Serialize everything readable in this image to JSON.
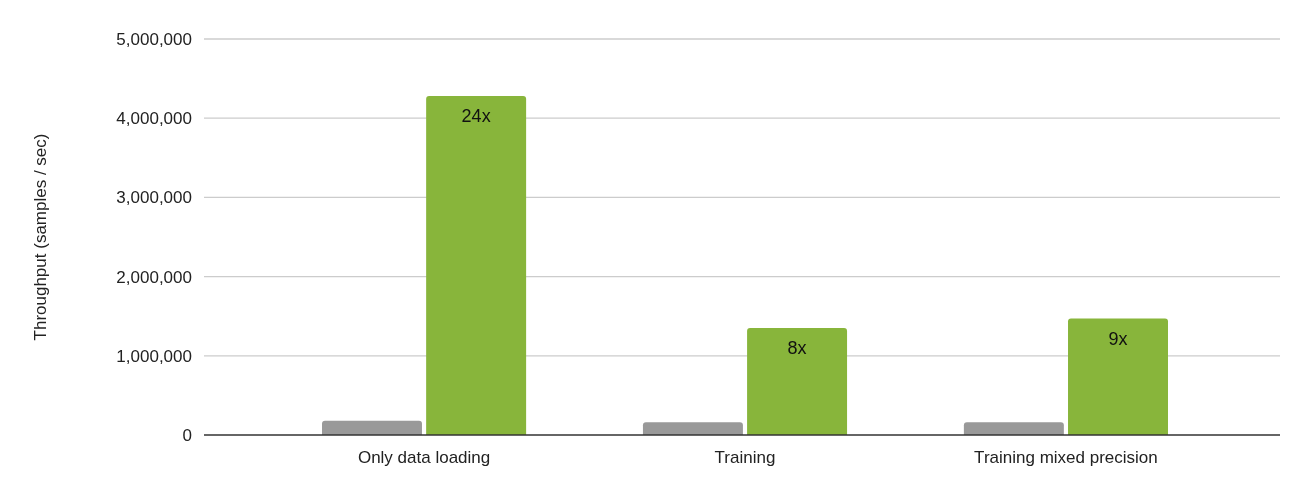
{
  "chart_data": {
    "type": "bar",
    "ylabel": "Throughput (samples / sec)",
    "categories": [
      "Only data loading",
      "Training",
      "Training mixed precision"
    ],
    "series": [
      {
        "color": "#999999",
        "values": [
          180000,
          160000,
          160000
        ]
      },
      {
        "color": "#88b53b",
        "values": [
          4280000,
          1350000,
          1470000
        ]
      }
    ],
    "ylim": [
      0,
      5000000
    ],
    "yticks": [
      {
        "value": 0,
        "label": "0"
      },
      {
        "value": 1000000,
        "label": "1,000,000"
      },
      {
        "value": 2000000,
        "label": "2,000,000"
      },
      {
        "value": 3000000,
        "label": "3,000,000"
      },
      {
        "value": 4000000,
        "label": "4,000,000"
      },
      {
        "value": 5000000,
        "label": "5,000,000"
      }
    ],
    "grid": "y",
    "annotations": [
      {
        "text": "24x",
        "x": "Only data loading",
        "y": 4280000
      },
      {
        "text": "8x",
        "x": "Training",
        "y": 1350000
      },
      {
        "text": "9x",
        "x": "Training mixed precision",
        "y": 1470000
      }
    ]
  }
}
